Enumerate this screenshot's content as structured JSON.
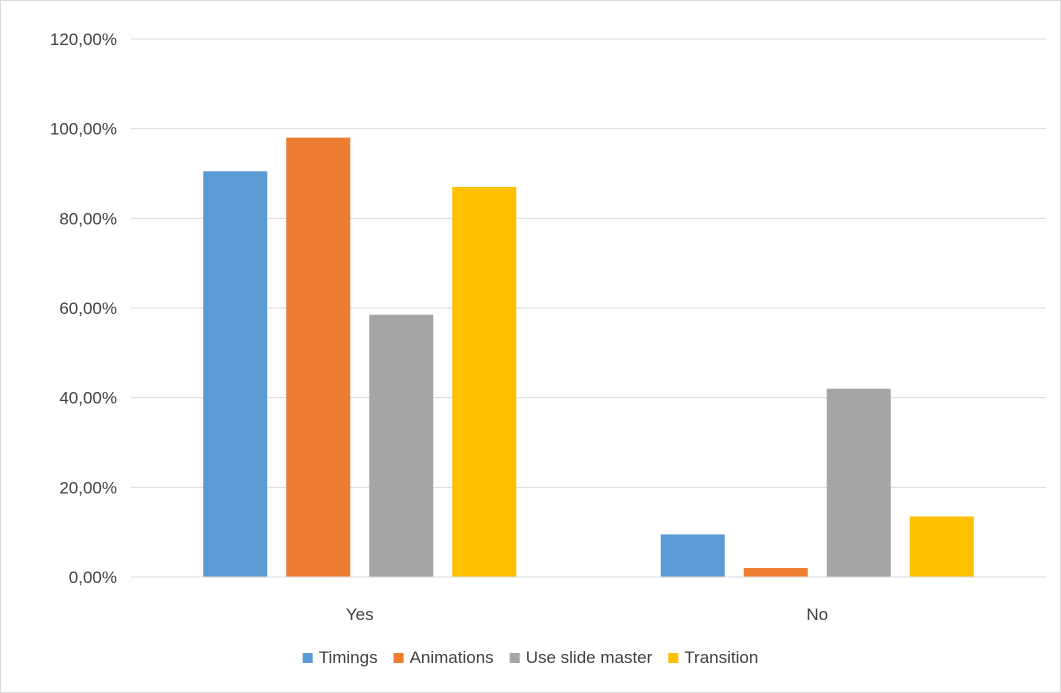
{
  "chart_data": {
    "type": "bar",
    "categories": [
      "Yes",
      "No"
    ],
    "series": [
      {
        "name": "Timings",
        "values": [
          0.905,
          0.095
        ],
        "color": "#5B9BD5"
      },
      {
        "name": "Animations",
        "values": [
          0.98,
          0.02
        ],
        "color": "#ED7D31"
      },
      {
        "name": "Use slide master",
        "values": [
          0.585,
          0.42
        ],
        "color": "#A5A5A5"
      },
      {
        "name": "Transition",
        "values": [
          0.87,
          0.135
        ],
        "color": "#FFC000"
      }
    ],
    "ylim": [
      0,
      1.2
    ],
    "yticks": [
      0,
      0.2,
      0.4,
      0.6,
      0.8,
      1.0,
      1.2
    ],
    "ytick_labels": [
      "0,00%",
      "20,00%",
      "40,00%",
      "60,00%",
      "80,00%",
      "100,00%",
      "120,00%"
    ],
    "grid": true,
    "legend_position": "bottom",
    "title": "",
    "xlabel": "",
    "ylabel": ""
  }
}
